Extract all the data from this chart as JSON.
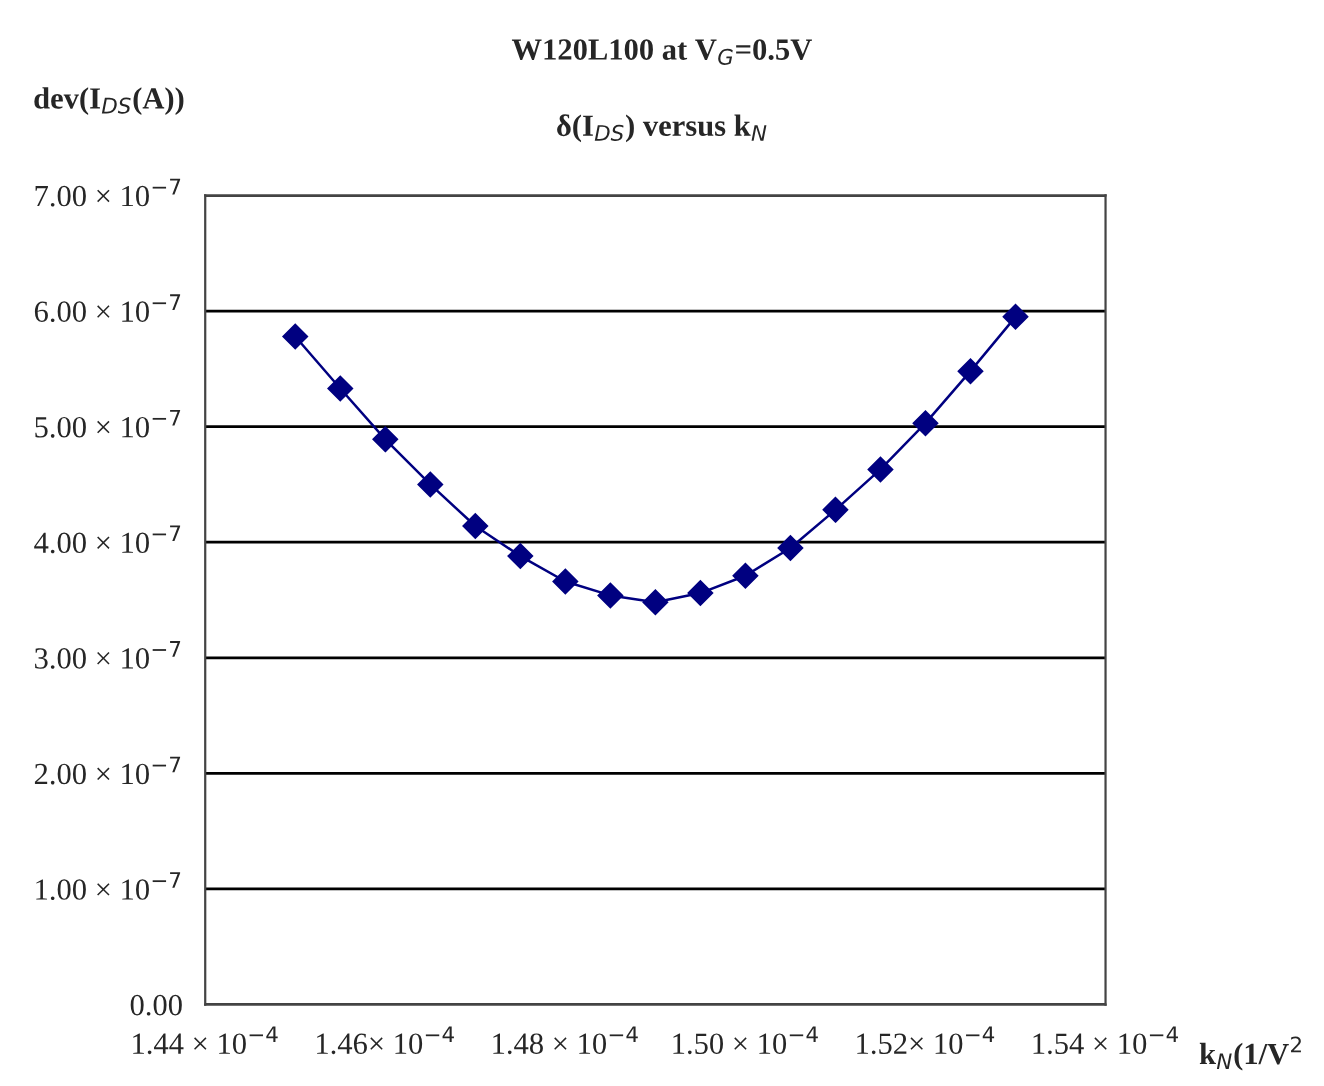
{
  "chart_data": {
    "type": "line",
    "title": "W120L100 at V$_{G}$=0.5V",
    "subtitle": "δ(I$_{DS}$) versus k$_{N}$",
    "xlabel": "k$_{N}$(1/V$^{2}$",
    "ylabel": "dev(I$_{DS}$(A))",
    "x": [
      0.000145,
      0.0001455,
      0.000146,
      0.0001465,
      0.000147,
      0.0001475,
      0.000148,
      0.0001485,
      0.000149,
      0.0001495,
      0.00015,
      0.0001505,
      0.000151,
      0.0001515,
      0.000152,
      0.0001525,
      0.000153
    ],
    "series": [
      {
        "color": "#000080",
        "values": [
          5.78e-07,
          5.33e-07,
          4.89e-07,
          4.5e-07,
          4.14e-07,
          3.88e-07,
          3.66e-07,
          3.54e-07,
          3.48e-07,
          3.56e-07,
          3.71e-07,
          3.95e-07,
          4.28e-07,
          4.63e-07,
          5.03e-07,
          5.48e-07,
          5.95e-07
        ]
      }
    ],
    "xlim": [
      0.000144,
      0.000154
    ],
    "xticks": [
      {
        "value": 0.000144,
        "label": "1.44 × 10$^{−4}$"
      },
      {
        "value": 0.000146,
        "label": "1.46× 10$^{−4}$"
      },
      {
        "value": 0.000148,
        "label": "1.48 × 10$^{−4}$"
      },
      {
        "value": 0.00015,
        "label": "1.50 × 10$^{−4}$"
      },
      {
        "value": 0.000152,
        "label": "1.52× 10$^{−4}$"
      },
      {
        "value": 0.000154,
        "label": "1.54 × 10$^{−4}$"
      }
    ],
    "ylim": [
      0,
      7e-07
    ],
    "yticks": [
      {
        "value": 0,
        "label": "0.00"
      },
      {
        "value": 1e-07,
        "label": "1.00 × 10$^{−7}$"
      },
      {
        "value": 2e-07,
        "label": "2.00 × 10$^{−7}$"
      },
      {
        "value": 3e-07,
        "label": "3.00 × 10$^{−7}$"
      },
      {
        "value": 4e-07,
        "label": "4.00 × 10$^{−7}$"
      },
      {
        "value": 5e-07,
        "label": "5.00 × 10$^{−7}$"
      },
      {
        "value": 6e-07,
        "label": "6.00 × 10$^{−7}$"
      },
      {
        "value": 7e-07,
        "label": "7.00 × 10$^{−7}$"
      }
    ],
    "grid": "y",
    "marker": "diamond",
    "line_style": "solid"
  }
}
